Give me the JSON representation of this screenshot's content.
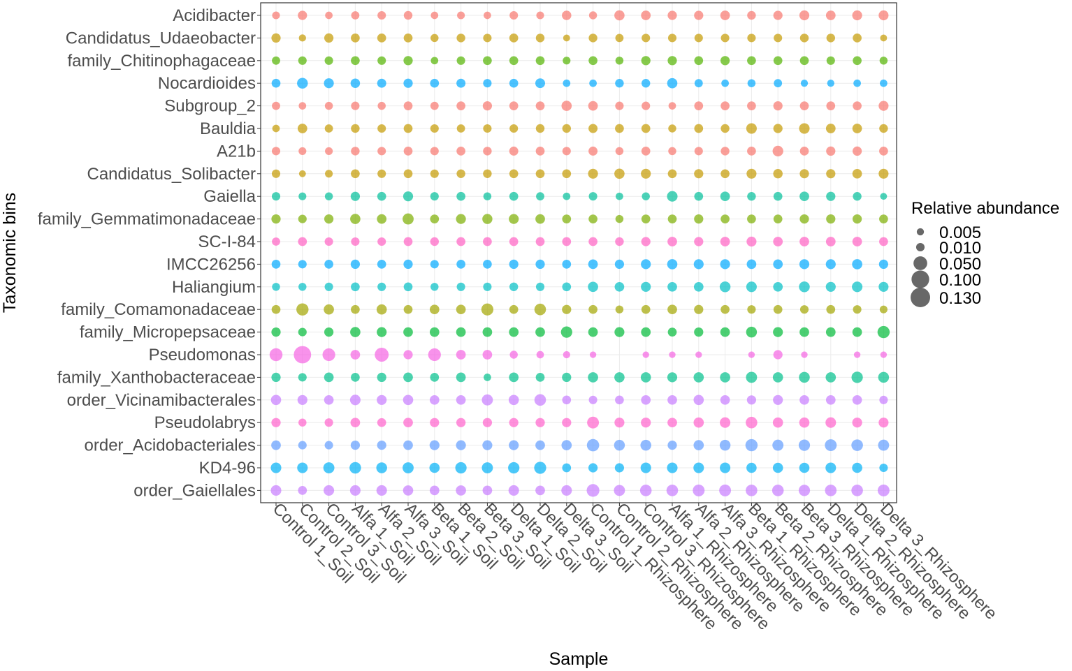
{
  "chart_data": {
    "type": "bubble",
    "xlabel": "Sample",
    "ylabel": "Taxonomic bins",
    "size_legend": {
      "title": "Relative abundance",
      "values": [
        0.005,
        0.01,
        0.05,
        0.1,
        0.13
      ],
      "labels": [
        "0.005",
        "0.010",
        "0.050",
        "0.100",
        "0.130"
      ]
    },
    "samples": [
      "Control 1_Soil",
      "Control 2_Soil",
      "Control 3_Soil",
      "Alfa 1_Soil",
      "Alfa 2_Soil",
      "Alfa 3_Soil",
      "Beta 1_Soil",
      "Beta 2_Soil",
      "Beta 3_Soil",
      "Delta 1_Soil",
      "Delta 2_Soil",
      "Delta 3_Soil",
      "Control 1_Rhizosphere",
      "Control 2_Rhizosphere",
      "Control 3_Rhizosphere",
      "Alfa 1_Rhizosphere",
      "Alfa 2_Rhizosphere",
      "Alfa 3_Rhizosphere",
      "Beta 1_Rhizosphere",
      "Beta 2_Rhizosphere",
      "Beta 3_Rhizosphere",
      "Delta 1_Rhizosphere",
      "Delta 2_Rhizosphere",
      "Delta 3_Rhizosphere"
    ],
    "taxa": [
      {
        "name": "Acidibacter",
        "color": "#F8766D",
        "values": [
          0.007,
          0.014,
          0.006,
          0.009,
          0.01,
          0.011,
          0.006,
          0.007,
          0.006,
          0.01,
          0.007,
          0.015,
          0.008,
          0.02,
          0.016,
          0.014,
          0.014,
          0.016,
          0.011,
          0.014,
          0.018,
          0.016,
          0.018,
          0.018
        ]
      },
      {
        "name": "Candidatus_Udaeobacter",
        "color": "#C49A00",
        "values": [
          0.014,
          0.005,
          0.014,
          0.012,
          0.012,
          0.012,
          0.008,
          0.011,
          0.01,
          0.012,
          0.011,
          0.004,
          0.011,
          0.009,
          0.01,
          0.01,
          0.01,
          0.01,
          0.01,
          0.01,
          0.011,
          0.011,
          0.012,
          0.004
        ]
      },
      {
        "name": "family_Chitinophagaceae",
        "color": "#53B400",
        "values": [
          0.009,
          0.01,
          0.01,
          0.012,
          0.01,
          0.014,
          0.006,
          0.01,
          0.012,
          0.012,
          0.012,
          0.007,
          0.012,
          0.008,
          0.014,
          0.014,
          0.012,
          0.014,
          0.012,
          0.012,
          0.012,
          0.01,
          0.012,
          0.008
        ]
      },
      {
        "name": "Nocardioides",
        "color": "#00A9FF",
        "values": [
          0.012,
          0.024,
          0.018,
          0.015,
          0.013,
          0.014,
          0.012,
          0.013,
          0.01,
          0.012,
          0.017,
          0.006,
          0.006,
          0.011,
          0.011,
          0.02,
          0.009,
          0.006,
          0.008,
          0.009,
          0.005,
          0.005,
          0.006,
          0.006
        ]
      },
      {
        "name": "Subgroup_2",
        "color": "#F8766D",
        "values": [
          0.009,
          0.006,
          0.008,
          0.01,
          0.008,
          0.012,
          0.009,
          0.012,
          0.014,
          0.012,
          0.012,
          0.02,
          0.016,
          0.01,
          0.01,
          0.006,
          0.012,
          0.012,
          0.012,
          0.014,
          0.012,
          0.012,
          0.012,
          0.018
        ]
      },
      {
        "name": "Bauldia",
        "color": "#C49A00",
        "values": [
          0.006,
          0.016,
          0.009,
          0.011,
          0.01,
          0.012,
          0.01,
          0.009,
          0.01,
          0.01,
          0.011,
          0.011,
          0.013,
          0.012,
          0.012,
          0.008,
          0.012,
          0.011,
          0.022,
          0.014,
          0.022,
          0.016,
          0.016,
          0.011
        ]
      },
      {
        "name": "A21b",
        "color": "#F8766D",
        "values": [
          0.01,
          0.007,
          0.007,
          0.011,
          0.01,
          0.012,
          0.01,
          0.012,
          0.011,
          0.013,
          0.012,
          0.01,
          0.013,
          0.008,
          0.012,
          0.008,
          0.01,
          0.011,
          0.012,
          0.023,
          0.012,
          0.014,
          0.014,
          0.012
        ]
      },
      {
        "name": "Candidatus_Solibacter",
        "color": "#C49A00",
        "values": [
          0.01,
          0.004,
          0.007,
          0.012,
          0.01,
          0.012,
          0.01,
          0.011,
          0.011,
          0.012,
          0.012,
          0.012,
          0.018,
          0.02,
          0.018,
          0.012,
          0.014,
          0.012,
          0.018,
          0.015,
          0.014,
          0.014,
          0.016,
          0.018
        ]
      },
      {
        "name": "Gaiella",
        "color": "#00BF9A",
        "values": [
          0.01,
          0.007,
          0.008,
          0.014,
          0.012,
          0.018,
          0.01,
          0.012,
          0.008,
          0.012,
          0.009,
          0.006,
          0.01,
          0.006,
          0.008,
          0.022,
          0.012,
          0.016,
          0.011,
          0.012,
          0.016,
          0.014,
          0.011,
          0.004
        ]
      },
      {
        "name": "family_Gemmatimonadaceae",
        "color": "#7CAE00",
        "values": [
          0.014,
          0.01,
          0.014,
          0.02,
          0.016,
          0.026,
          0.012,
          0.018,
          0.019,
          0.018,
          0.016,
          0.012,
          0.012,
          0.008,
          0.012,
          0.012,
          0.014,
          0.012,
          0.012,
          0.012,
          0.014,
          0.014,
          0.014,
          0.012
        ]
      },
      {
        "name": "SC-I-84",
        "color": "#FF61C3",
        "values": [
          0.009,
          0.012,
          0.01,
          0.01,
          0.01,
          0.012,
          0.011,
          0.012,
          0.012,
          0.012,
          0.012,
          0.012,
          0.012,
          0.011,
          0.014,
          0.016,
          0.014,
          0.016,
          0.018,
          0.016,
          0.016,
          0.016,
          0.016,
          0.012
        ]
      },
      {
        "name": "IMCC26256",
        "color": "#00A9FF",
        "values": [
          0.012,
          0.01,
          0.012,
          0.014,
          0.012,
          0.014,
          0.01,
          0.012,
          0.012,
          0.014,
          0.014,
          0.012,
          0.016,
          0.014,
          0.018,
          0.02,
          0.018,
          0.018,
          0.016,
          0.016,
          0.018,
          0.018,
          0.02,
          0.014
        ]
      },
      {
        "name": "Haliangium",
        "color": "#00BFC4",
        "values": [
          0.008,
          0.008,
          0.01,
          0.012,
          0.01,
          0.012,
          0.008,
          0.01,
          0.01,
          0.011,
          0.01,
          0.012,
          0.02,
          0.016,
          0.018,
          0.016,
          0.016,
          0.024,
          0.022,
          0.016,
          0.024,
          0.018,
          0.022,
          0.018
        ]
      },
      {
        "name": "family_Comamonadaceae",
        "color": "#A3A500",
        "values": [
          0.012,
          0.035,
          0.02,
          0.012,
          0.02,
          0.012,
          0.016,
          0.016,
          0.034,
          0.012,
          0.03,
          0.014,
          0.012,
          0.008,
          0.012,
          0.016,
          0.014,
          0.012,
          0.01,
          0.012,
          0.01,
          0.012,
          0.01,
          0.007
        ]
      },
      {
        "name": "family_Micropepsaceae",
        "color": "#00BA38",
        "values": [
          0.014,
          0.01,
          0.014,
          0.02,
          0.018,
          0.016,
          0.016,
          0.016,
          0.016,
          0.016,
          0.016,
          0.028,
          0.016,
          0.018,
          0.016,
          0.012,
          0.014,
          0.016,
          0.024,
          0.018,
          0.016,
          0.016,
          0.016,
          0.035
        ]
      },
      {
        "name": "Pseudomonas",
        "color": "#F564E3",
        "values": [
          0.042,
          0.095,
          0.04,
          0.016,
          0.052,
          0.014,
          0.04,
          0.016,
          0.016,
          0.008,
          0.006,
          0.005,
          0.003,
          0.0,
          0.003,
          0.003,
          0.003,
          0.0,
          0.003,
          0.014,
          0.003,
          0.0,
          0.003,
          0.003
        ]
      },
      {
        "name": "family_Xanthobacteraceae",
        "color": "#00C08B",
        "values": [
          0.014,
          0.01,
          0.016,
          0.012,
          0.014,
          0.016,
          0.012,
          0.016,
          0.006,
          0.016,
          0.012,
          0.014,
          0.02,
          0.02,
          0.02,
          0.018,
          0.02,
          0.02,
          0.026,
          0.02,
          0.024,
          0.02,
          0.028,
          0.024
        ]
      },
      {
        "name": "order_Vicinamibacterales",
        "color": "#C77CFF",
        "values": [
          0.02,
          0.018,
          0.016,
          0.022,
          0.018,
          0.02,
          0.016,
          0.016,
          0.026,
          0.02,
          0.03,
          0.012,
          0.01,
          0.012,
          0.016,
          0.016,
          0.02,
          0.016,
          0.014,
          0.018,
          0.016,
          0.016,
          0.016,
          0.01
        ]
      },
      {
        "name": "Pseudolabrys",
        "color": "#FF61CC",
        "values": [
          0.014,
          0.008,
          0.01,
          0.016,
          0.012,
          0.016,
          0.014,
          0.014,
          0.014,
          0.014,
          0.014,
          0.014,
          0.032,
          0.018,
          0.018,
          0.016,
          0.02,
          0.022,
          0.03,
          0.02,
          0.02,
          0.022,
          0.018,
          0.018
        ]
      },
      {
        "name": "order_Acidobacteriales",
        "color": "#619CFF",
        "values": [
          0.016,
          0.01,
          0.01,
          0.014,
          0.014,
          0.016,
          0.018,
          0.018,
          0.018,
          0.018,
          0.016,
          0.02,
          0.036,
          0.024,
          0.024,
          0.014,
          0.02,
          0.024,
          0.035,
          0.026,
          0.028,
          0.032,
          0.03,
          0.026
        ]
      },
      {
        "name": "KD4-96",
        "color": "#00B0F6",
        "values": [
          0.022,
          0.022,
          0.026,
          0.03,
          0.024,
          0.026,
          0.02,
          0.028,
          0.026,
          0.028,
          0.034,
          0.012,
          0.014,
          0.014,
          0.022,
          0.022,
          0.022,
          0.022,
          0.02,
          0.02,
          0.02,
          0.022,
          0.02,
          0.01
        ]
      },
      {
        "name": "order_Gaiellales",
        "color": "#C77CFF",
        "values": [
          0.022,
          0.012,
          0.022,
          0.022,
          0.022,
          0.02,
          0.016,
          0.02,
          0.016,
          0.022,
          0.016,
          0.022,
          0.04,
          0.026,
          0.03,
          0.03,
          0.032,
          0.032,
          0.03,
          0.03,
          0.028,
          0.03,
          0.03,
          0.032
        ]
      }
    ]
  }
}
